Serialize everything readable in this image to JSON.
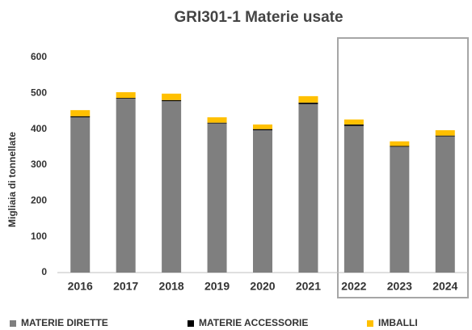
{
  "chart_data": {
    "type": "stacked_bar",
    "title": "GRI301-1   Materie usate",
    "y_label": "Migliaia di tonnellate",
    "categories": [
      "2016",
      "2017",
      "2018",
      "2019",
      "2020",
      "2021",
      "2022",
      "2023",
      "2024"
    ],
    "series": [
      {
        "name": "MATERIE DIRETTE",
        "color": "#7f7f7f",
        "values": [
          433,
          485,
          478,
          416,
          397,
          470,
          409,
          351,
          380
        ]
      },
      {
        "name": "MATERIE ACCESSORIE",
        "color": "#000000",
        "values": [
          3,
          2,
          3,
          2,
          3,
          4,
          4,
          2,
          2
        ]
      },
      {
        "name": "IMBALLI",
        "color": "#ffc000",
        "values": [
          17,
          16,
          18,
          15,
          13,
          18,
          14,
          13,
          15
        ]
      }
    ],
    "ylim": [
      0,
      600
    ],
    "yticks": [
      0,
      100,
      200,
      300,
      400,
      500,
      600
    ],
    "grid": false,
    "legend": "bottom"
  }
}
